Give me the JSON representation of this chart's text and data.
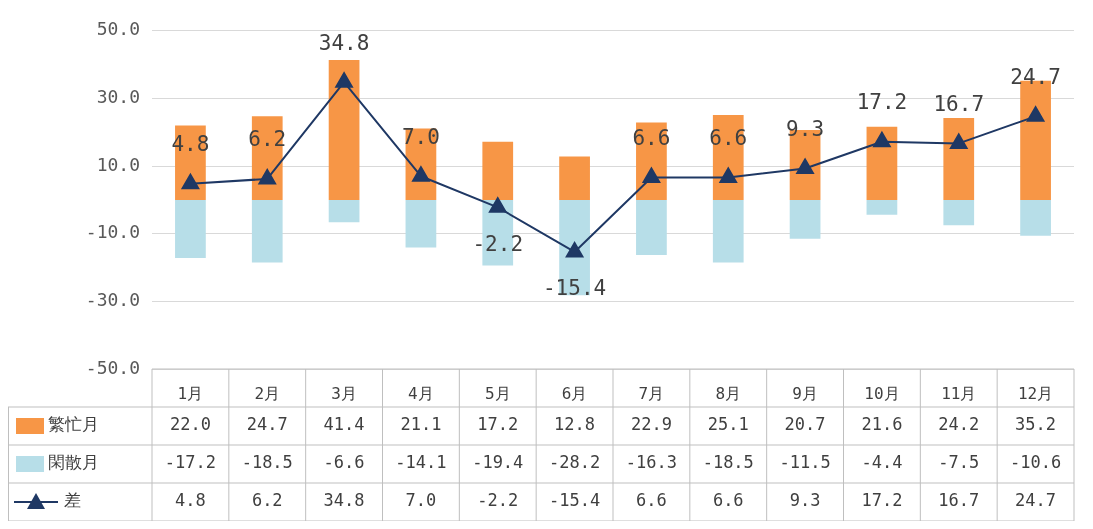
{
  "chart_data": {
    "type": "bar",
    "stacked": true,
    "categories": [
      "1月",
      "2月",
      "3月",
      "4月",
      "5月",
      "6月",
      "7月",
      "8月",
      "9月",
      "10月",
      "11月",
      "12月"
    ],
    "series": [
      {
        "name": "繁忙月",
        "color": "#f79646",
        "values": [
          22.0,
          24.7,
          41.4,
          21.1,
          17.2,
          12.8,
          22.9,
          25.1,
          20.7,
          21.6,
          24.2,
          35.2
        ],
        "value_labels": [
          "22.0",
          "24.7",
          "41.4",
          "21.1",
          "17.2",
          "12.8",
          "22.9",
          "25.1",
          "20.7",
          "21.6",
          "24.2",
          "35.2"
        ]
      },
      {
        "name": "閑散月",
        "color": "#b7dee8",
        "values": [
          -17.2,
          -18.5,
          -6.6,
          -14.1,
          -19.4,
          -28.2,
          -16.3,
          -18.5,
          -11.5,
          -4.4,
          -7.5,
          -10.6
        ],
        "value_labels": [
          "-17.2",
          "-18.5",
          "-6.6",
          "-14.1",
          "-19.4",
          "-28.2",
          "-16.3",
          "-18.5",
          "-11.5",
          "-4.4",
          "-7.5",
          "-10.6"
        ]
      },
      {
        "name": "差",
        "type": "line",
        "color": "#1f3864",
        "marker": "triangle",
        "values": [
          4.8,
          6.2,
          34.8,
          7.0,
          -2.2,
          -15.4,
          6.6,
          6.6,
          9.3,
          17.2,
          16.7,
          24.7
        ],
        "value_labels": [
          "4.8",
          "6.2",
          "34.8",
          "7.0",
          "-2.2",
          "-15.4",
          "6.6",
          "6.6",
          "9.3",
          "17.2",
          "16.7",
          "24.7"
        ]
      }
    ],
    "ylim": [
      -50,
      50
    ],
    "yticks": [
      {
        "value": -50,
        "label": "-50.0"
      },
      {
        "value": -30,
        "label": "-30.0"
      },
      {
        "value": -10,
        "label": "-10.0"
      },
      {
        "value": 10,
        "label": "10.0"
      },
      {
        "value": 30,
        "label": "30.0"
      },
      {
        "value": 50,
        "label": "50.0"
      }
    ],
    "grid": "y",
    "legend": "bottom"
  }
}
